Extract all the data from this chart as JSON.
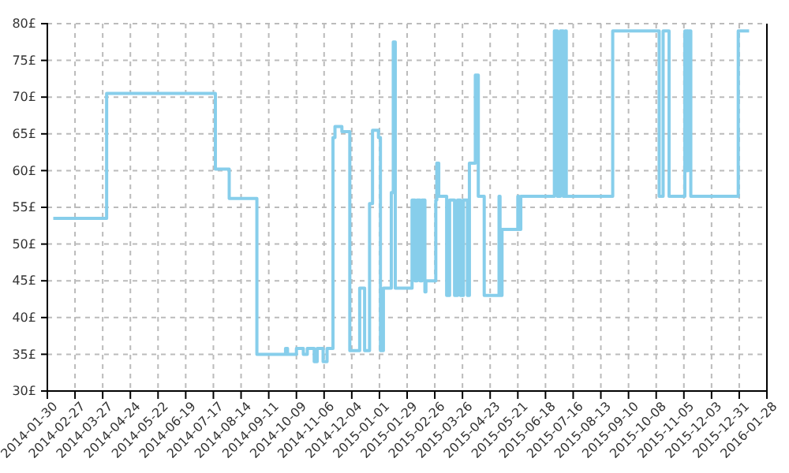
{
  "chart_data": {
    "type": "step",
    "x": [
      "2014-02-05",
      "2014-03-31",
      "2014-07-19",
      "2014-08-02",
      "2014-08-30",
      "2014-09-28",
      "2014-09-30",
      "2014-10-09",
      "2014-10-16",
      "2014-10-20",
      "2014-10-27",
      "2014-10-30",
      "2014-11-05",
      "2014-11-09",
      "2014-11-15",
      "2014-11-17",
      "2014-11-24",
      "2014-12-02",
      "2014-12-12",
      "2014-12-17",
      "2014-12-22",
      "2014-12-25",
      "2014-12-31",
      "2015-01-02",
      "2015-01-05",
      "2015-01-13",
      "2015-01-15",
      "2015-01-17",
      "2015-02-03",
      "2015-02-06",
      "2015-02-08",
      "2015-02-11",
      "2015-02-13",
      "2015-02-16",
      "2015-02-17",
      "2015-02-27",
      "2015-02-28",
      "2015-03-02",
      "2015-03-10",
      "2015-03-13",
      "2015-03-18",
      "2015-03-21",
      "2015-03-24",
      "2015-03-27",
      "2015-03-31",
      "2015-04-02",
      "2015-04-08",
      "2015-04-11",
      "2015-04-17",
      "2015-05-02",
      "2015-05-03",
      "2015-05-05",
      "2015-05-21",
      "2015-05-22",
      "2015-05-24",
      "2015-06-27",
      "2015-06-30",
      "2015-07-03",
      "2015-07-06",
      "2015-07-08",
      "2015-07-09",
      "2015-08-25",
      "2015-10-11",
      "2015-10-15",
      "2015-10-21",
      "2015-11-06",
      "2015-11-08",
      "2015-11-09",
      "2015-11-12",
      "2015-12-30",
      "2016-01-10"
    ],
    "series": [
      {
        "color": "#87ceeb",
        "values": [
          53.5,
          70.5,
          60.2,
          56.2,
          35,
          35.8,
          35,
          35.8,
          35,
          35.8,
          34,
          35.8,
          34,
          35.8,
          64.5,
          66,
          65.3,
          35.5,
          44,
          35.5,
          55.5,
          65.5,
          64.5,
          35.5,
          44,
          57,
          77.5,
          44,
          56,
          45,
          56,
          45,
          56,
          43.5,
          45,
          56,
          61,
          56.5,
          43,
          56,
          43,
          56,
          43,
          56,
          43,
          61,
          73,
          56.5,
          43,
          56.5,
          43,
          52,
          56.5,
          52,
          56.5,
          79,
          56.5,
          79,
          56.5,
          79,
          56.5,
          79,
          56.5,
          79,
          56.5,
          79,
          60,
          79,
          56.5,
          79,
          79
        ]
      }
    ],
    "xlim": [
      "2014-01-30",
      "2016-01-28"
    ],
    "xticks": [
      "2014-01-30",
      "2014-02-27",
      "2014-03-27",
      "2014-04-24",
      "2014-05-22",
      "2014-06-19",
      "2014-07-17",
      "2014-08-14",
      "2014-09-11",
      "2014-10-09",
      "2014-11-06",
      "2014-12-04",
      "2015-01-01",
      "2015-01-29",
      "2015-02-26",
      "2015-03-26",
      "2015-04-23",
      "2015-05-21",
      "2015-06-18",
      "2015-07-16",
      "2015-08-13",
      "2015-09-10",
      "2015-10-08",
      "2015-11-05",
      "2015-12-03",
      "2015-12-31",
      "2016-01-28"
    ],
    "ylim": [
      30,
      80
    ],
    "yticks": [
      {
        "value": 30,
        "label": "30£"
      },
      {
        "value": 35,
        "label": "35£"
      },
      {
        "value": 40,
        "label": "40£"
      },
      {
        "value": 45,
        "label": "45£"
      },
      {
        "value": 50,
        "label": "50£"
      },
      {
        "value": 55,
        "label": "55£"
      },
      {
        "value": 60,
        "label": "60£"
      },
      {
        "value": 65,
        "label": "65£"
      },
      {
        "value": 70,
        "label": "70£"
      },
      {
        "value": 75,
        "label": "75£"
      },
      {
        "value": 80,
        "label": "80£"
      }
    ],
    "grid": true,
    "line_style": "solid",
    "marker": "none"
  }
}
